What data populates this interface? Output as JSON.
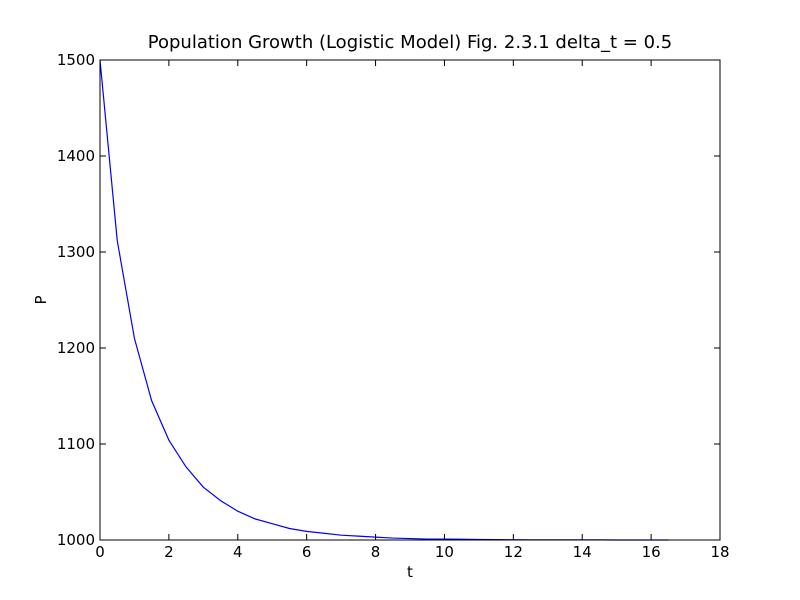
{
  "chart_data": {
    "type": "line",
    "title": "Population Growth (Logistic Model) Fig. 2.3.1 delta_t = 0.5",
    "xlabel": "t",
    "ylabel": "P",
    "xlim": [
      0,
      18
    ],
    "ylim": [
      1000,
      1500
    ],
    "xticks": [
      "0",
      "2",
      "4",
      "6",
      "8",
      "10",
      "12",
      "14",
      "16",
      "18"
    ],
    "yticks": [
      "1000",
      "1100",
      "1200",
      "1300",
      "1400",
      "1500"
    ],
    "grid": false,
    "line_color": "#0000ff",
    "series": [
      {
        "x": [
          0,
          0.5,
          1.0,
          1.5,
          2.0,
          2.5,
          3.0,
          3.5,
          4.0,
          4.5,
          5.0,
          5.5,
          6.0,
          6.5,
          7.0,
          7.5,
          8.0,
          8.5,
          9.0,
          9.5,
          10.0,
          10.5,
          11.0,
          11.5,
          12.0,
          12.5,
          13.0,
          13.5,
          14.0,
          14.5,
          15.0,
          15.5,
          16.0,
          16.5
        ],
        "y": [
          1500,
          1312,
          1210,
          1145,
          1104,
          1076,
          1055,
          1041,
          1030,
          1022,
          1017,
          1012,
          1009,
          1007,
          1005,
          1004,
          1003,
          1002,
          1001.5,
          1001,
          1001,
          1000.8,
          1000.6,
          1000.4,
          1000.3,
          1000.2,
          1000.2,
          1000.1,
          1000.1,
          1000.1,
          1000,
          1000,
          1000,
          1000
        ]
      }
    ]
  }
}
